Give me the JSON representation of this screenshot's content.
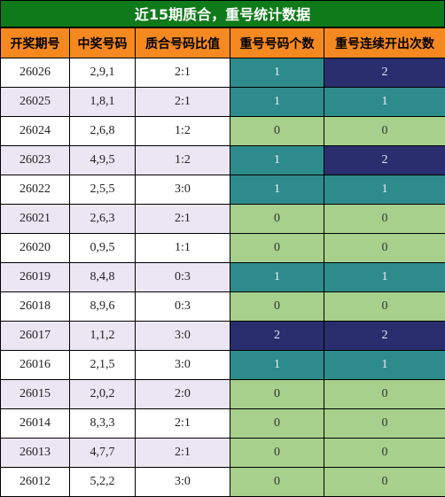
{
  "title": "近15期质合，重号统计数据",
  "headers": [
    "开奖期号",
    "中奖号码",
    "质合号码比值",
    "重号号码个数",
    "重号连续开出次数"
  ],
  "rows": [
    {
      "period": "26026",
      "numbers": "2,9,1",
      "ratio": "2:1",
      "repeat_count": "1",
      "consecutive": "2"
    },
    {
      "period": "26025",
      "numbers": "1,8,1",
      "ratio": "2:1",
      "repeat_count": "1",
      "consecutive": "1"
    },
    {
      "period": "26024",
      "numbers": "2,6,8",
      "ratio": "1:2",
      "repeat_count": "0",
      "consecutive": "0"
    },
    {
      "period": "26023",
      "numbers": "4,9,5",
      "ratio": "1:2",
      "repeat_count": "1",
      "consecutive": "2"
    },
    {
      "period": "26022",
      "numbers": "2,5,5",
      "ratio": "3:0",
      "repeat_count": "1",
      "consecutive": "1"
    },
    {
      "period": "26021",
      "numbers": "2,6,3",
      "ratio": "2:1",
      "repeat_count": "0",
      "consecutive": "0"
    },
    {
      "period": "26020",
      "numbers": "0,9,5",
      "ratio": "1:1",
      "repeat_count": "0",
      "consecutive": "0"
    },
    {
      "period": "26019",
      "numbers": "8,4,8",
      "ratio": "0:3",
      "repeat_count": "1",
      "consecutive": "1"
    },
    {
      "period": "26018",
      "numbers": "8,9,6",
      "ratio": "0:3",
      "repeat_count": "0",
      "consecutive": "0"
    },
    {
      "period": "26017",
      "numbers": "1,1,2",
      "ratio": "3:0",
      "repeat_count": "2",
      "consecutive": "2"
    },
    {
      "period": "26016",
      "numbers": "2,1,5",
      "ratio": "3:0",
      "repeat_count": "1",
      "consecutive": "1"
    },
    {
      "period": "26015",
      "numbers": "2,0,2",
      "ratio": "2:0",
      "repeat_count": "0",
      "consecutive": "0"
    },
    {
      "period": "26014",
      "numbers": "8,3,3",
      "ratio": "2:1",
      "repeat_count": "0",
      "consecutive": "0"
    },
    {
      "period": "26013",
      "numbers": "4,7,7",
      "ratio": "2:1",
      "repeat_count": "0",
      "consecutive": "0"
    },
    {
      "period": "26012",
      "numbers": "5,2,2",
      "ratio": "3:0",
      "repeat_count": "0",
      "consecutive": "0"
    }
  ],
  "colors": {
    "title_bg": "#0f7a1a",
    "header_bg": "#f5891f",
    "row_alt_bg": "#ece6f4",
    "value_0": "#a7d08c",
    "value_1": "#2e8b8b",
    "value_2": "#2a2e6e"
  }
}
